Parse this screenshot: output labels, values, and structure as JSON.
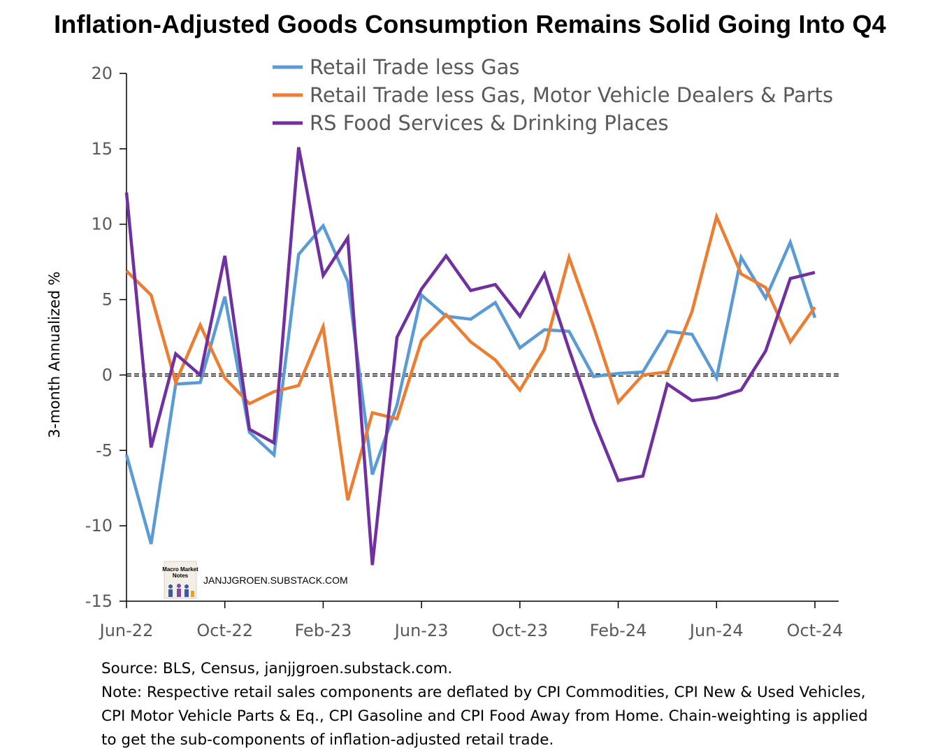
{
  "chart_data": {
    "type": "line",
    "title": "Inflation-Adjusted Goods Consumption Remains Solid Going Into Q4",
    "xlabel": "",
    "ylabel": "3-month Annualized %",
    "ylim": [
      -15,
      20
    ],
    "yticks": [
      "20",
      "15",
      "10",
      "5",
      "0",
      "-5",
      "-10",
      "-15"
    ],
    "x": [
      "Jun-22",
      "Jul-22",
      "Aug-22",
      "Sep-22",
      "Oct-22",
      "Nov-22",
      "Dec-22",
      "Jan-23",
      "Feb-23",
      "Mar-23",
      "Apr-23",
      "May-23",
      "Jun-23",
      "Jul-23",
      "Aug-23",
      "Sep-23",
      "Oct-23",
      "Nov-23",
      "Dec-23",
      "Jan-24",
      "Feb-24",
      "Mar-24",
      "Apr-24",
      "May-24",
      "Jun-24",
      "Jul-24",
      "Aug-24",
      "Sep-24",
      "Oct-24"
    ],
    "xtick_labels": [
      "Jun-22",
      "Oct-22",
      "Feb-23",
      "Jun-23",
      "Oct-23",
      "Feb-24",
      "Jun-24",
      "Oct-24"
    ],
    "zero_line": "dashed",
    "legend_position": "top",
    "series": [
      {
        "name": "Retail Trade less Gas",
        "color": "#5B9BD5",
        "values": [
          -5.3,
          -11.2,
          -0.6,
          -0.5,
          5.2,
          -3.8,
          -5.3,
          8.0,
          9.9,
          6.2,
          -6.6,
          -2.0,
          5.3,
          3.9,
          3.7,
          4.8,
          1.8,
          3.0,
          2.9,
          -0.1,
          0.1,
          0.2,
          2.9,
          2.7,
          -0.2,
          7.8,
          5.1,
          8.8,
          3.8
        ]
      },
      {
        "name": "Retail Trade less Gas, Motor Vehicle Dealers & Parts",
        "color": "#ED7D31",
        "values": [
          6.9,
          5.3,
          -0.5,
          3.3,
          -0.2,
          -1.9,
          -1.1,
          -0.7,
          3.2,
          -8.3,
          -2.5,
          -2.9,
          2.3,
          4.0,
          2.2,
          1.0,
          -1.0,
          1.7,
          7.8,
          3.2,
          -1.8,
          0.0,
          0.2,
          4.2,
          10.5,
          6.7,
          5.8,
          2.2,
          4.5
        ]
      },
      {
        "name": "RS Food Services & Drinking Places",
        "color": "#7030A0",
        "values": [
          12.1,
          -4.8,
          1.4,
          0.0,
          7.9,
          -3.6,
          -4.5,
          15.1,
          6.6,
          9.1,
          -12.6,
          2.5,
          5.7,
          7.9,
          5.6,
          6.0,
          3.9,
          6.7,
          1.7,
          -3.0,
          -7.0,
          -6.7,
          -0.6,
          -1.7,
          -1.5,
          -1.0,
          1.6,
          6.4,
          6.8
        ]
      }
    ]
  },
  "watermark": {
    "logo_text_line1": "Macro Market",
    "logo_text_line2": "Notes",
    "site": "JANJJGROEN.SUBSTACK.COM"
  },
  "notes": [
    "Source: BLS, Census, janjjgroen.substack.com.",
    "Note: Respective retail sales components are deflated by CPI Commodities, CPI New & Used Vehicles,",
    "CPI Motor Vehicle Parts & Eq., CPI Gasoline and CPI Food Away from Home. Chain-weighting is applied",
    "to get the sub-components of inflation-adjusted retail trade."
  ]
}
